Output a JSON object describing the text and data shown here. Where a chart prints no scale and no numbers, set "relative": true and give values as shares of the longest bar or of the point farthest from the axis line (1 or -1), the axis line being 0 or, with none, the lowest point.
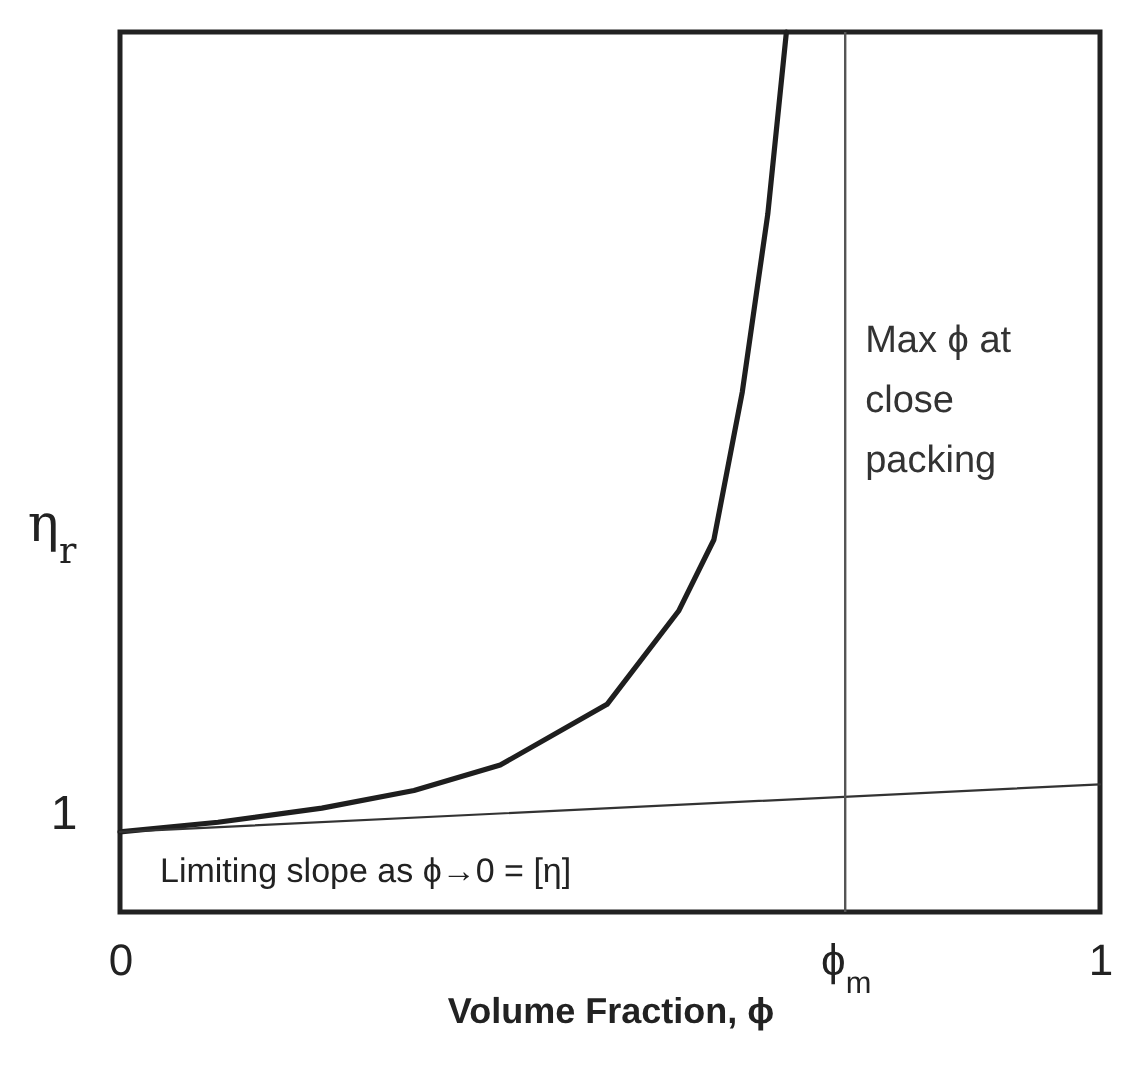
{
  "chart_data": {
    "type": "line",
    "relative": true,
    "xlabel": "Volume Fraction, ϕ",
    "ylabel": "η$_{r}$",
    "x": [
      0,
      0.1,
      0.206,
      0.3,
      0.388,
      0.497,
      0.57,
      0.606,
      0.635,
      0.661,
      0.68
    ],
    "series": [
      {
        "color": "#1e1e1e",
        "values": [
          0.091,
          0.102,
          0.118,
          0.138,
          0.167,
          0.236,
          0.342,
          0.423,
          0.591,
          0.793,
          1.0
        ]
      },
      {
        "type": "line",
        "color": "#333333",
        "x": [
          0,
          1
        ],
        "values": [
          0.091,
          0.145
        ]
      }
    ],
    "xlim": [
      0,
      1
    ],
    "xticks": [
      0,
      {
        "value": 0.74,
        "label": "ϕ$_{m}$"
      },
      1
    ],
    "ref_lines": [
      {
        "axis": "x",
        "value": 0.74,
        "label": "Max ϕ at close packing",
        "color": "#555555"
      }
    ],
    "annotations": [
      "1",
      "Limiting slope as ϕ→0 = [η]"
    ],
    "grid": false,
    "marker": "none",
    "line_style": "solid"
  }
}
